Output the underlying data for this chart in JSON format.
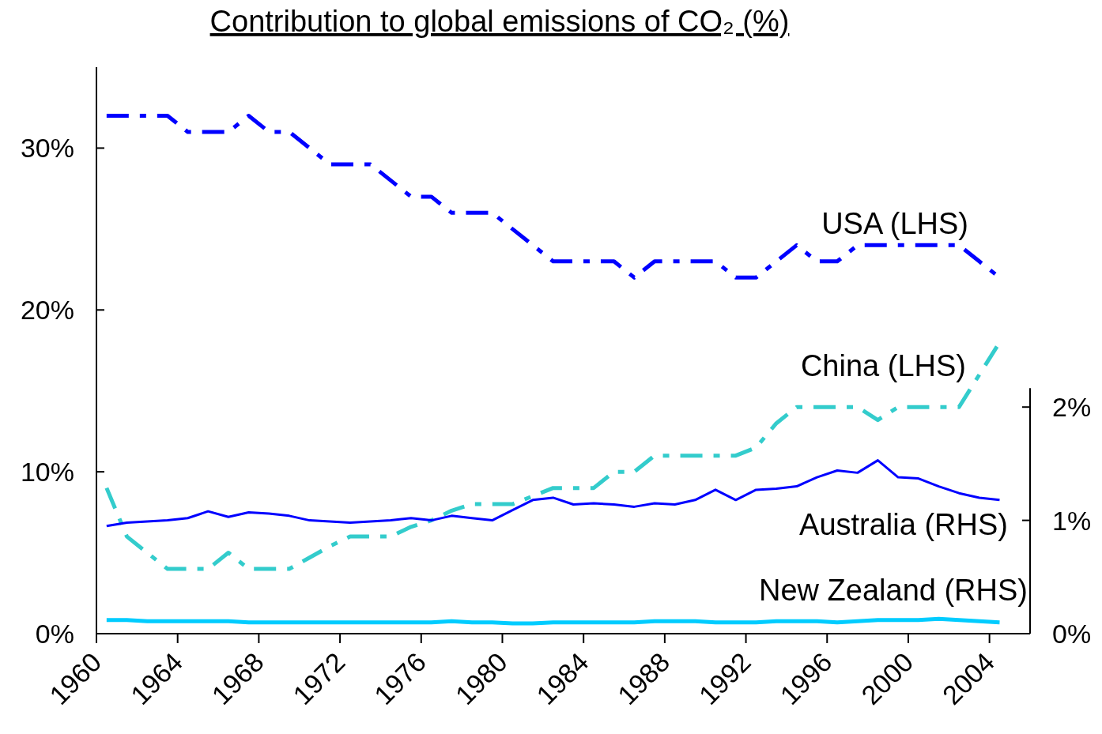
{
  "chart_data": {
    "type": "line",
    "title": "Contribution to global emissions of CO₂ (%)",
    "x": [
      1960.5,
      1961.5,
      1962.5,
      1963.5,
      1964.5,
      1965.5,
      1966.5,
      1967.5,
      1968.5,
      1969.5,
      1970.5,
      1971.5,
      1972.5,
      1973.5,
      1974.5,
      1975.5,
      1976.5,
      1977.5,
      1978.5,
      1979.5,
      1980.5,
      1981.5,
      1982.5,
      1983.5,
      1984.5,
      1985.5,
      1986.5,
      1987.5,
      1988.5,
      1989.5,
      1990.5,
      1991.5,
      1992.5,
      1993.5,
      1994.5,
      1995.5,
      1996.5,
      1997.5,
      1998.5,
      1999.5,
      2000.5,
      2001.5,
      2002.5,
      2003.5,
      2004.5
    ],
    "series": [
      {
        "name": "USA (LHS)",
        "color": "#0000ff",
        "line_style": "dashed",
        "axis": "y",
        "values": [
          32,
          32,
          32,
          32,
          31,
          31,
          31,
          32,
          31,
          31,
          30,
          29,
          29,
          29,
          28,
          27,
          27,
          26,
          26,
          26,
          25,
          24,
          23,
          23,
          23,
          23,
          22,
          23,
          23,
          23,
          23,
          22,
          22,
          23,
          24,
          23,
          23,
          24,
          24,
          24,
          24,
          24,
          24,
          23,
          22
        ]
      },
      {
        "name": "China (LHS)",
        "color": "#33cccc",
        "line_style": "dashed",
        "axis": "y",
        "values": [
          9,
          6,
          5,
          4,
          4,
          4,
          5,
          4,
          4,
          4,
          4.7,
          5.4,
          6,
          6,
          6,
          6.6,
          7,
          7.6,
          8,
          8,
          8,
          8.5,
          9,
          9,
          9,
          10,
          10,
          11,
          11,
          11,
          11,
          11,
          11.5,
          13,
          14,
          14,
          14,
          14,
          13.2,
          14,
          14,
          14,
          14,
          16,
          18
        ]
      },
      {
        "name": "Australia (RHS)",
        "color": "#0000ff",
        "line_style": "solid",
        "axis": "y2",
        "values": [
          0.95,
          0.98,
          0.99,
          1.0,
          1.02,
          1.08,
          1.03,
          1.07,
          1.06,
          1.04,
          1.0,
          0.99,
          0.98,
          0.99,
          1.0,
          1.02,
          1.0,
          1.04,
          1.02,
          1.0,
          1.09,
          1.18,
          1.2,
          1.14,
          1.15,
          1.14,
          1.12,
          1.15,
          1.14,
          1.18,
          1.27,
          1.18,
          1.27,
          1.28,
          1.3,
          1.38,
          1.44,
          1.42,
          1.53,
          1.38,
          1.37,
          1.3,
          1.24,
          1.2,
          1.18
        ]
      },
      {
        "name": "New Zealand (RHS)",
        "color": "#00ccff",
        "line_style": "solid",
        "axis": "y2",
        "values": [
          0.12,
          0.12,
          0.11,
          0.11,
          0.11,
          0.11,
          0.11,
          0.1,
          0.1,
          0.1,
          0.1,
          0.1,
          0.1,
          0.1,
          0.1,
          0.1,
          0.1,
          0.11,
          0.1,
          0.1,
          0.09,
          0.09,
          0.1,
          0.1,
          0.1,
          0.1,
          0.1,
          0.11,
          0.11,
          0.11,
          0.1,
          0.1,
          0.1,
          0.11,
          0.11,
          0.11,
          0.1,
          0.11,
          0.12,
          0.12,
          0.12,
          0.13,
          0.12,
          0.11,
          0.1
        ]
      }
    ],
    "xlim": [
      1960,
      2006
    ],
    "xticks": [
      1960,
      1964,
      1968,
      1972,
      1976,
      1980,
      1984,
      1988,
      1992,
      1996,
      2000,
      2004
    ],
    "ylim": [
      0,
      35
    ],
    "yticks": [
      {
        "value": 0,
        "label": "0%"
      },
      {
        "value": 10,
        "label": "10%"
      },
      {
        "value": 20,
        "label": "20%"
      },
      {
        "value": 30,
        "label": "30%"
      }
    ],
    "y2lim": [
      0,
      5
    ],
    "y2ticks": [
      {
        "value": 0,
        "label": "0%"
      },
      {
        "value": 1,
        "label": "1%"
      },
      {
        "value": 2,
        "label": "2%"
      }
    ],
    "grid": false,
    "marker": "none"
  }
}
